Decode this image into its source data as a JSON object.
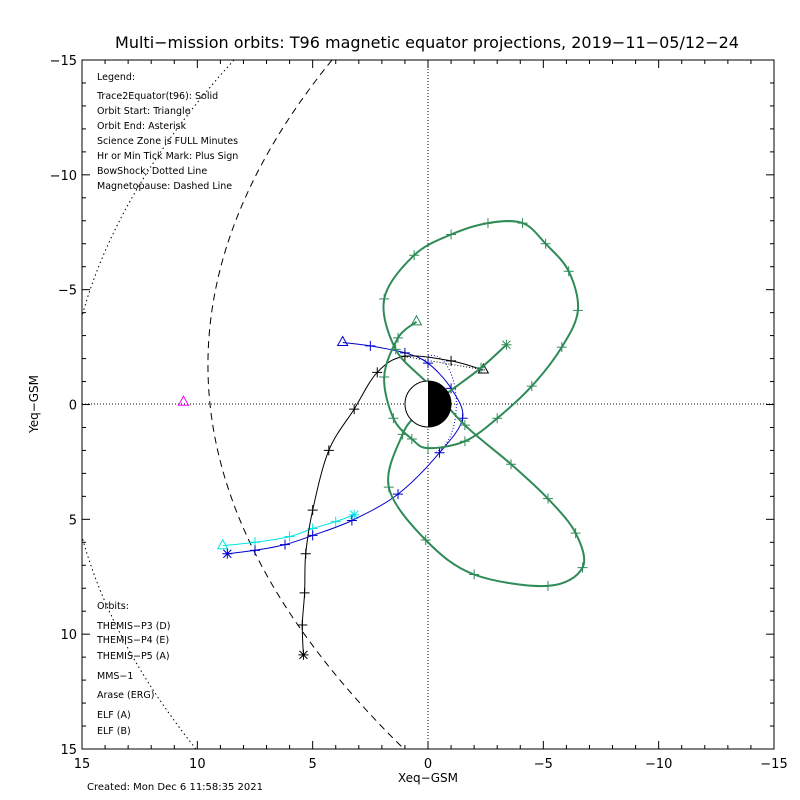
{
  "chart_data": {
    "type": "line",
    "title": "Multi−mission orbits: T96 magnetic equator projections, 2019−11−05/12−24",
    "xlabel": "Xeq−GSM",
    "ylabel": "Yeq−GSM",
    "xlim": [
      15,
      -15
    ],
    "ylim": [
      -15,
      15
    ],
    "x_ticks": [
      "15",
      "10",
      "5",
      "0",
      "−5",
      "−10",
      "−15"
    ],
    "y_ticks": [
      "−15",
      "−10",
      "−5",
      "0",
      "5",
      "10",
      "15"
    ],
    "grid": "dotted zero lines",
    "created": "Created: Mon Dec  6 11:58:35 2021",
    "legend_header": [
      "Legend:",
      "Trace2Equator(t96): Solid",
      "Orbit Start: Triangle",
      "Orbit End: Asterisk",
      "Science Zone is FULL Minutes",
      "Hr or Min Tick Mark: Plus Sign",
      "BowShock: Dotted Line",
      "Magnetopause: Dashed Line"
    ],
    "orbits_label": "Orbits:",
    "series": [
      {
        "name": "THEMIS−P3 (D)",
        "color": "#00e5e5",
        "x": [
          8.9,
          7.5,
          6.0,
          5.0,
          4.0,
          3.2
        ],
        "y": [
          6.15,
          6.0,
          5.75,
          5.4,
          5.1,
          4.8
        ]
      },
      {
        "name": "THEMIS−P4 (E)",
        "color": "#0000cc",
        "x": [
          3.7,
          2.5,
          1.0,
          0.0,
          -1.0,
          -1.5,
          -0.5,
          1.3,
          3.3,
          5.0,
          6.2,
          7.5,
          8.7
        ],
        "y": [
          -2.7,
          -2.55,
          -2.25,
          -1.8,
          -0.7,
          0.6,
          2.1,
          3.9,
          5.05,
          5.7,
          6.1,
          6.35,
          6.5
        ]
      },
      {
        "name": "THEMIS−P5 (A)",
        "color": "#ff00ff",
        "x": [
          10.6
        ],
        "y": [
          -0.1
        ]
      },
      {
        "name": "MMS−1",
        "color": "#000000",
        "x": [
          -2.4,
          -1.0,
          1.0,
          2.2,
          3.2,
          4.3,
          5.0,
          5.3,
          5.35,
          5.45,
          5.4
        ],
        "y": [
          -1.5,
          -1.9,
          -2.1,
          -1.4,
          0.2,
          2.0,
          4.6,
          6.5,
          8.2,
          9.6,
          10.9
        ]
      },
      {
        "name": "Arase (ERG)",
        "color": "#2e8b57",
        "x": [
          0.5,
          1.3,
          1.9,
          1.5,
          0.7,
          0.0,
          -1.6,
          -3.0,
          -4.5,
          -5.8,
          -6.5,
          -6.1,
          -5.1,
          -4.1,
          -2.6,
          -1.0,
          0.6,
          1.9,
          1.4,
          0.0,
          -1.6,
          -3.6,
          -5.2,
          -6.4,
          -6.7,
          -5.2,
          -2.0,
          0.1,
          1.7,
          1.1,
          0.4,
          -0.7,
          -2.3,
          -3.4
        ],
        "y": [
          -3.6,
          -2.9,
          -1.2,
          0.6,
          1.5,
          1.9,
          1.6,
          0.6,
          -0.8,
          -2.5,
          -4.1,
          -5.8,
          -7.0,
          -7.9,
          -7.9,
          -7.4,
          -6.5,
          -4.6,
          -2.4,
          -0.9,
          0.9,
          2.6,
          4.1,
          5.6,
          7.1,
          7.9,
          7.4,
          5.9,
          3.6,
          1.3,
          0.4,
          -0.4,
          -1.6,
          -2.6
        ]
      },
      {
        "name": "ELF (A)",
        "color": "#4a86d4",
        "x": [],
        "y": []
      },
      {
        "name": "ELF (B)",
        "color": "#cc0000",
        "x": [],
        "y": []
      }
    ]
  }
}
